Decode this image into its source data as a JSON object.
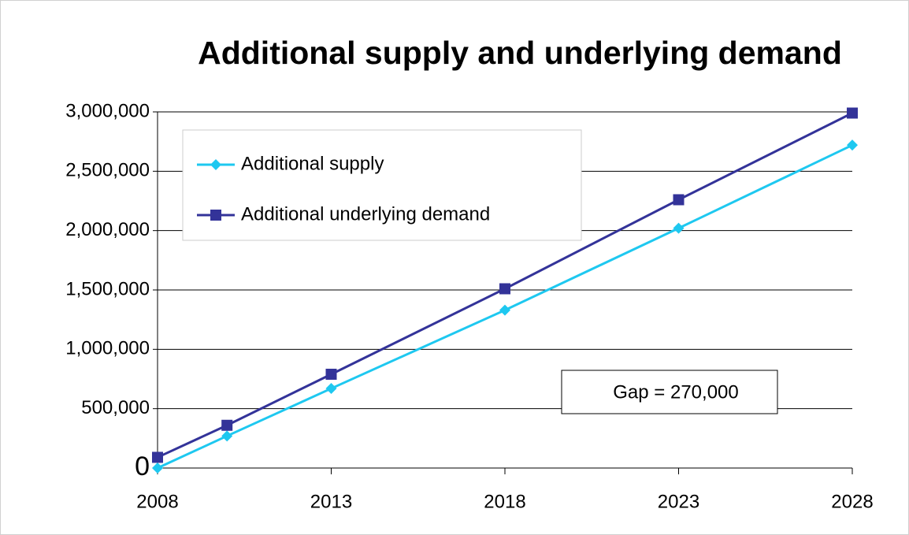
{
  "chart_data": {
    "type": "line",
    "title": "Additional supply and underlying demand",
    "x": [
      2008,
      2010,
      2013,
      2018,
      2023,
      2028
    ],
    "series": [
      {
        "name": "Additional supply",
        "color": "#1ec8f0",
        "marker": "diamond",
        "values": [
          0,
          270000,
          670000,
          1330000,
          2020000,
          2720000
        ]
      },
      {
        "name": "Additional underlying demand",
        "color": "#333399",
        "marker": "square",
        "values": [
          90000,
          360000,
          790000,
          1510000,
          2260000,
          2990000
        ]
      }
    ],
    "xlim": [
      2008,
      2028
    ],
    "xticks": [
      2008,
      2013,
      2018,
      2023,
      2028
    ],
    "ylim": [
      0,
      3000000
    ],
    "yticks": [
      0,
      {
        "value": 500000,
        "label": "500,000"
      },
      {
        "value": 1000000,
        "label": "1,000,000"
      },
      {
        "value": 1500000,
        "label": "1,500,000"
      },
      {
        "value": 2000000,
        "label": "2,000,000"
      },
      {
        "value": 2500000,
        "label": "2,500,000"
      },
      {
        "value": 3000000,
        "label": "3,000,000"
      }
    ],
    "grid": true,
    "annotations": [
      "Gap = 270,000"
    ]
  }
}
